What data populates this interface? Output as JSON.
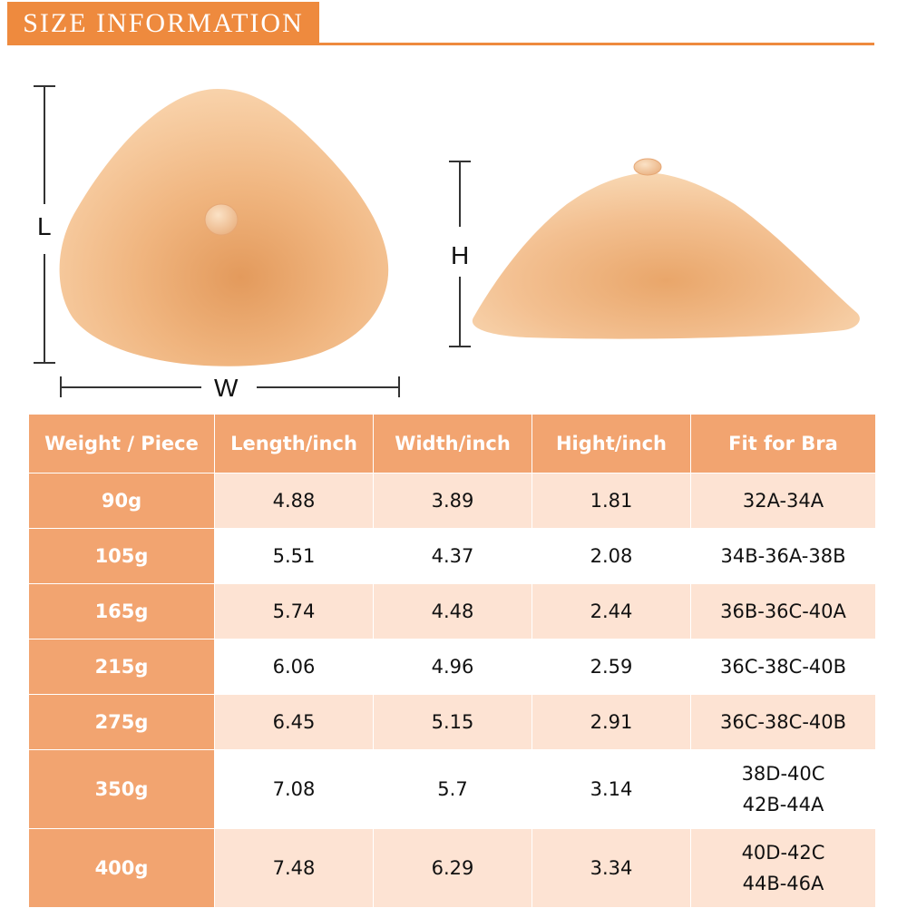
{
  "header": {
    "title": "SIZE INFORMATION"
  },
  "figure": {
    "label_length": "L",
    "label_width": "W",
    "label_height": "H"
  },
  "colors": {
    "accent": "#ee8a3e",
    "header_fill": "#f2a470",
    "row_tint": "#fde3d3"
  },
  "table": {
    "headers": [
      "Weight / Piece",
      "Length/inch",
      "Width/inch",
      "Hight/inch",
      "Fit for Bra"
    ],
    "rows": [
      {
        "weight": "90g",
        "length": "4.88",
        "width": "3.89",
        "height": "1.81",
        "fit": [
          "32A-34A"
        ]
      },
      {
        "weight": "105g",
        "length": "5.51",
        "width": "4.37",
        "height": "2.08",
        "fit": [
          "34B-36A-38B"
        ]
      },
      {
        "weight": "165g",
        "length": "5.74",
        "width": "4.48",
        "height": "2.44",
        "fit": [
          "36B-36C-40A"
        ]
      },
      {
        "weight": "215g",
        "length": "6.06",
        "width": "4.96",
        "height": "2.59",
        "fit": [
          "36C-38C-40B"
        ]
      },
      {
        "weight": "275g",
        "length": "6.45",
        "width": "5.15",
        "height": "2.91",
        "fit": [
          "36C-38C-40B"
        ]
      },
      {
        "weight": "350g",
        "length": "7.08",
        "width": "5.7",
        "height": "3.14",
        "fit": [
          "38D-40C",
          "42B-44A"
        ]
      },
      {
        "weight": "400g",
        "length": "7.48",
        "width": "6.29",
        "height": "3.34",
        "fit": [
          "40D-42C",
          "44B-46A"
        ]
      }
    ]
  }
}
